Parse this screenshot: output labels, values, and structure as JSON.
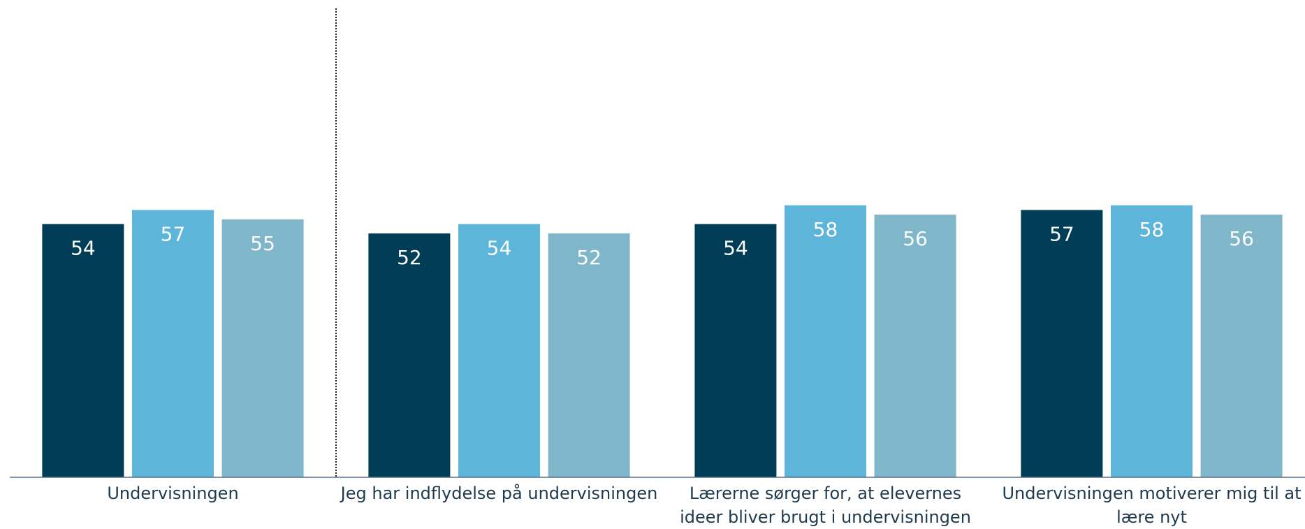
{
  "chart_data": {
    "type": "bar",
    "categories": [
      "Undervisningen",
      "Jeg har indflydelse på undervisningen",
      "Lærerne sørger for, at elevernes ideer bliver brugt i undervisningen",
      "Undervisningen motiverer mig til at lære nyt"
    ],
    "series": [
      {
        "color": "#003d56",
        "values": [
          54,
          52,
          54,
          57
        ]
      },
      {
        "color": "#5db5d9",
        "values": [
          57,
          54,
          58,
          58
        ]
      },
      {
        "color": "#7fb6ca",
        "values": [
          55,
          52,
          56,
          56
        ]
      }
    ],
    "ylim": [
      0,
      100
    ]
  }
}
